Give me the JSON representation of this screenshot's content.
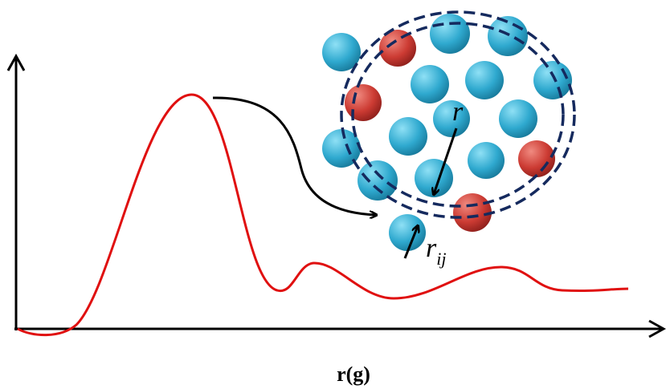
{
  "labels": {
    "radius": "r",
    "pair_distance_base": "r",
    "pair_distance_sub": "ij",
    "x_axis": "r(g)"
  }
}
